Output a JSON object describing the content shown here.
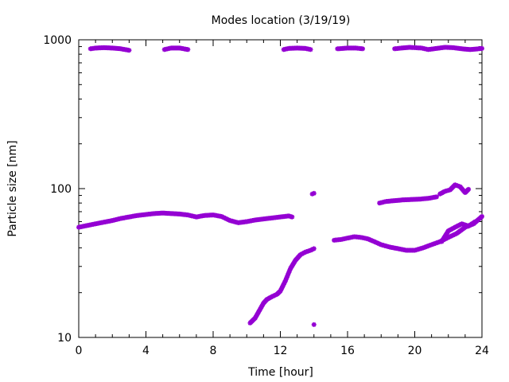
{
  "chart_data": {
    "type": "scatter",
    "title": "Modes location (3/19/19)",
    "xlabel": "Time [hour]",
    "ylabel": "Particle size [nm]",
    "xlim": [
      0,
      24
    ],
    "ylim": [
      10,
      1000
    ],
    "yscale": "log",
    "x_ticks": [
      "0",
      "4",
      "8",
      "12",
      "16",
      "20",
      "24"
    ],
    "y_ticks": [
      "10",
      "100",
      "1000"
    ],
    "grid": false,
    "legend": "none",
    "marker_color": "#9400d3",
    "series": [
      {
        "segments": [
          {
            "x": [
              0.0,
              0.5,
              1.0,
              1.5,
              2.0,
              2.5,
              3.0,
              3.5,
              4.0,
              4.5,
              5.0,
              5.5,
              6.0,
              6.5,
              7.0,
              7.5,
              8.0,
              8.5,
              9.0,
              9.5,
              10.0,
              10.5,
              11.0,
              11.5,
              12.0,
              12.5,
              12.7
            ],
            "y": [
              55,
              56.5,
              58,
              59.5,
              61,
              63,
              64.5,
              66,
              67,
              68,
              68.5,
              68,
              67.5,
              66.5,
              64.5,
              66,
              66.5,
              65,
              61,
              59,
              60,
              61.5,
              62.5,
              63.5,
              64.5,
              65.5,
              64.5
            ]
          },
          {
            "x": [
              0.7,
              1.0,
              1.5,
              2.0,
              2.5,
              3.0
            ],
            "y": [
              870,
              880,
              885,
              880,
              870,
              850
            ]
          },
          {
            "x": [
              5.1,
              5.5,
              6.0,
              6.5
            ],
            "y": [
              860,
              880,
              880,
              860
            ]
          },
          {
            "x": [
              12.2,
              12.5,
              13.0,
              13.5,
              13.8
            ],
            "y": [
              860,
              875,
              880,
              875,
              860
            ]
          },
          {
            "x": [
              15.4,
              16.0,
              16.5,
              16.9
            ],
            "y": [
              870,
              880,
              880,
              870
            ]
          },
          {
            "x": [
              18.8,
              19.2,
              19.7,
              20.0,
              20.4,
              20.8,
              21.3,
              21.8,
              22.3,
              22.8,
              23.3,
              23.8,
              24.0
            ],
            "y": [
              870,
              880,
              890,
              885,
              880,
              860,
              875,
              890,
              885,
              870,
              860,
              870,
              875
            ]
          },
          {
            "x": [
              10.2,
              10.5,
              10.8,
              11.0,
              11.2,
              11.5,
              11.8,
              12.0,
              12.3,
              12.6,
              12.9,
              13.2,
              13.5,
              13.8,
              14.0
            ],
            "y": [
              12.5,
              13.5,
              15.5,
              17,
              18,
              18.8,
              19.5,
              20.5,
              24,
              29,
              33,
              36,
              37.5,
              38.5,
              39.5
            ]
          },
          {
            "x": [
              13.9,
              14.0
            ],
            "y": [
              92,
              93
            ]
          },
          {
            "x": [
              14.0
            ],
            "y": [
              12.2
            ]
          },
          {
            "x": [
              15.2,
              15.6,
              16.0,
              16.4,
              16.8,
              17.2,
              17.6,
              18.0,
              18.5,
              19.0,
              19.5,
              20.0,
              20.5,
              21.0,
              21.5,
              22.0,
              22.5,
              23.0,
              23.5,
              24.0
            ],
            "y": [
              45,
              45.5,
              46.5,
              47.5,
              47,
              46,
              44,
              42,
              40.5,
              39.5,
              38.5,
              38.5,
              40,
              42,
              44,
              47,
              50,
              55,
              58,
              65
            ]
          },
          {
            "x": [
              17.9,
              18.3,
              18.8,
              19.3,
              19.8,
              20.3,
              20.8,
              21.3
            ],
            "y": [
              80,
              82,
              83,
              84,
              84.5,
              85,
              86,
              88
            ]
          },
          {
            "x": [
              21.5,
              21.8,
              22.1,
              22.4,
              22.7,
              23.0,
              23.2
            ],
            "y": [
              92,
              96,
              98,
              106,
              103,
              94,
              99
            ]
          },
          {
            "x": [
              21.6,
              22.0,
              22.4,
              22.8,
              23.2,
              23.6
            ],
            "y": [
              44,
              52,
              55,
              58,
              56,
              60
            ]
          }
        ]
      }
    ]
  }
}
